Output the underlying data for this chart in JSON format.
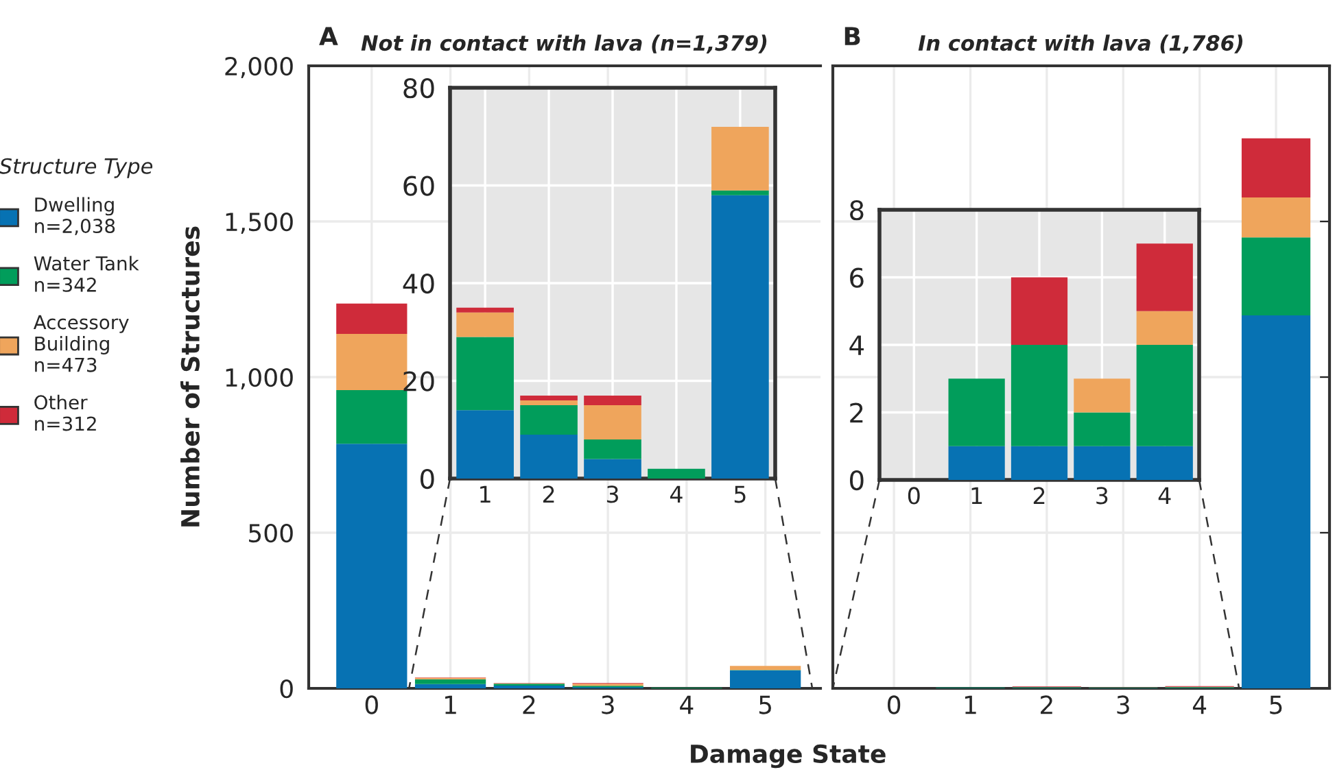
{
  "chart_data": [
    {
      "type": "bar",
      "stacked": true,
      "title": "Not in contact with lava (n=1,379)",
      "annotations": [
        "A"
      ],
      "xlabel": "Damage State",
      "ylabel": "Number of Structures",
      "legend_title": "Structure Type",
      "legend": "left",
      "grid": true,
      "categories": [
        "0",
        "1",
        "2",
        "3",
        "4",
        "5"
      ],
      "ylim": [
        0,
        2000
      ],
      "yticks": [
        0,
        {
          "value": 500,
          "label": "500"
        },
        {
          "value": 1000,
          "label": "1,000"
        },
        {
          "value": 1500,
          "label": "1,500"
        },
        {
          "value": 2000,
          "label": "2,000"
        }
      ],
      "series": [
        {
          "name": "Dwelling\nn=2,038",
          "color": "#0772b3",
          "values": [
            786,
            14,
            9,
            4,
            0,
            58
          ]
        },
        {
          "name": "Water Tank\nn=342",
          "color": "#019d5b",
          "values": [
            172,
            15,
            6,
            4,
            2,
            1
          ]
        },
        {
          "name": "Accessory\nBuilding\nn=473",
          "color": "#efa55c",
          "values": [
            181,
            5,
            1,
            7,
            0,
            13
          ]
        },
        {
          "name": "Other\nn=312",
          "color": "#cf2b3a",
          "values": [
            97,
            1,
            1,
            2,
            0,
            0
          ]
        }
      ]
    },
    {
      "type": "bar",
      "stacked": true,
      "grid": true,
      "categories": [
        "1",
        "2",
        "3",
        "4",
        "5"
      ],
      "ylim": [
        0,
        80
      ],
      "yticks": [
        0,
        20,
        40,
        60,
        80
      ],
      "series": [
        {
          "color": "#0772b3",
          "values": [
            14,
            9,
            4,
            0,
            58
          ]
        },
        {
          "color": "#019d5b",
          "values": [
            15,
            6,
            4,
            2,
            1
          ]
        },
        {
          "color": "#efa55c",
          "values": [
            5,
            1,
            7,
            0,
            13
          ]
        },
        {
          "color": "#cf2b3a",
          "values": [
            1,
            1,
            2,
            0,
            0
          ]
        }
      ]
    },
    {
      "type": "bar",
      "stacked": true,
      "title": "In contact with lava (1,786)",
      "annotations": [
        "B"
      ],
      "grid": true,
      "tick_labels": "x",
      "categories": [
        "0",
        "1",
        "2",
        "3",
        "4",
        "5"
      ],
      "ylim": [
        0,
        2000
      ],
      "yticks": [
        0,
        500,
        1000,
        1500,
        2000
      ],
      "series": [
        {
          "color": "#0772b3",
          "values": [
            0,
            1,
            1,
            1,
            1,
            1198
          ]
        },
        {
          "color": "#019d5b",
          "values": [
            0,
            2,
            3,
            1,
            3,
            251
          ]
        },
        {
          "color": "#efa55c",
          "values": [
            0,
            0,
            0,
            1,
            1,
            128
          ]
        },
        {
          "color": "#cf2b3a",
          "values": [
            0,
            0,
            2,
            0,
            2,
            190
          ]
        }
      ]
    },
    {
      "type": "bar",
      "stacked": true,
      "grid": true,
      "categories": [
        "0",
        "1",
        "2",
        "3",
        "4"
      ],
      "ylim": [
        0,
        8
      ],
      "yticks": [
        0,
        2,
        4,
        6,
        8
      ],
      "series": [
        {
          "color": "#0772b3",
          "values": [
            0,
            1,
            1,
            1,
            1
          ]
        },
        {
          "color": "#019d5b",
          "values": [
            0,
            2,
            3,
            1,
            3
          ]
        },
        {
          "color": "#efa55c",
          "values": [
            0,
            0,
            0,
            1,
            1
          ]
        },
        {
          "color": "#cf2b3a",
          "values": [
            0,
            0,
            2,
            0,
            2
          ]
        }
      ]
    }
  ]
}
